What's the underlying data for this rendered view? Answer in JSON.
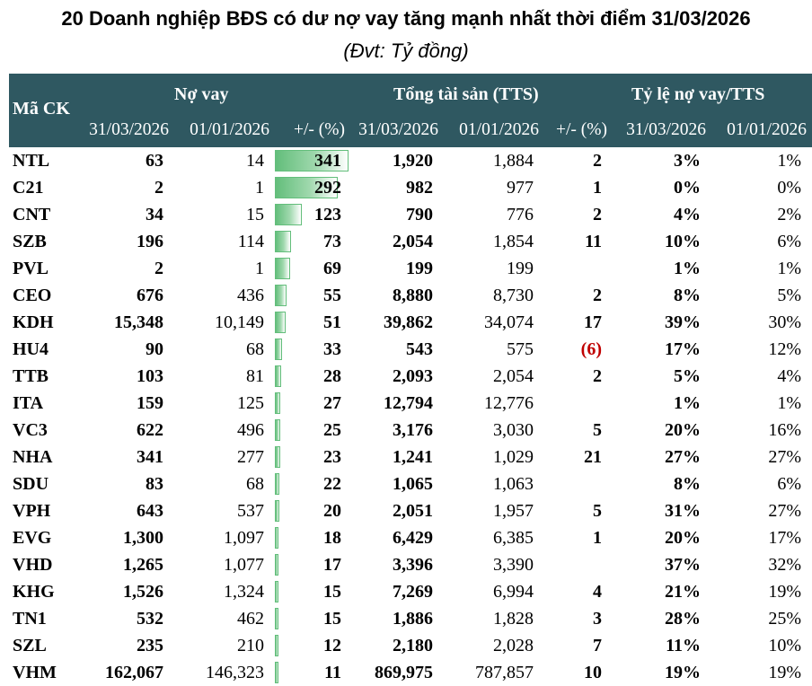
{
  "title": "20 Doanh nghiệp BĐS có dư nợ vay tăng mạnh nhất thời điểm 31/03/2026",
  "subtitle": "(Đvt: Tỷ đồng)",
  "headers": {
    "ticker": "Mã CK",
    "debt": "Nợ vay",
    "assets": "Tổng tài sản (TTS)",
    "ratio": "Tỷ lệ nợ vay/TTS",
    "date1": "31/03/2026",
    "date2": "01/01/2026",
    "change": "+/- (%)"
  },
  "bar_color": "#63be7b",
  "header_color": "#2f5861",
  "rows": [
    {
      "ticker": "NTL",
      "debt_q1": "63",
      "debt_start": "14",
      "debt_chg": "341",
      "debt_chg_val": 341,
      "assets_q1": "1,920",
      "assets_start": "1,884",
      "assets_chg": "2",
      "ratio_q1": "3%",
      "ratio_start": "1%"
    },
    {
      "ticker": "C21",
      "debt_q1": "2",
      "debt_start": "1",
      "debt_chg": "292",
      "debt_chg_val": 292,
      "assets_q1": "982",
      "assets_start": "977",
      "assets_chg": "1",
      "ratio_q1": "0%",
      "ratio_start": "0%"
    },
    {
      "ticker": "CNT",
      "debt_q1": "34",
      "debt_start": "15",
      "debt_chg": "123",
      "debt_chg_val": 123,
      "assets_q1": "790",
      "assets_start": "776",
      "assets_chg": "2",
      "ratio_q1": "4%",
      "ratio_start": "2%"
    },
    {
      "ticker": "SZB",
      "debt_q1": "196",
      "debt_start": "114",
      "debt_chg": "73",
      "debt_chg_val": 73,
      "assets_q1": "2,054",
      "assets_start": "1,854",
      "assets_chg": "11",
      "ratio_q1": "10%",
      "ratio_start": "6%"
    },
    {
      "ticker": "PVL",
      "debt_q1": "2",
      "debt_start": "1",
      "debt_chg": "69",
      "debt_chg_val": 69,
      "assets_q1": "199",
      "assets_start": "199",
      "assets_chg": "",
      "ratio_q1": "1%",
      "ratio_start": "1%"
    },
    {
      "ticker": "CEO",
      "debt_q1": "676",
      "debt_start": "436",
      "debt_chg": "55",
      "debt_chg_val": 55,
      "assets_q1": "8,880",
      "assets_start": "8,730",
      "assets_chg": "2",
      "ratio_q1": "8%",
      "ratio_start": "5%"
    },
    {
      "ticker": "KDH",
      "debt_q1": "15,348",
      "debt_start": "10,149",
      "debt_chg": "51",
      "debt_chg_val": 51,
      "assets_q1": "39,862",
      "assets_start": "34,074",
      "assets_chg": "17",
      "ratio_q1": "39%",
      "ratio_start": "30%"
    },
    {
      "ticker": "HU4",
      "debt_q1": "90",
      "debt_start": "68",
      "debt_chg": "33",
      "debt_chg_val": 33,
      "assets_q1": "543",
      "assets_start": "575",
      "assets_chg": "(6)",
      "assets_chg_neg": true,
      "ratio_q1": "17%",
      "ratio_start": "12%"
    },
    {
      "ticker": "TTB",
      "debt_q1": "103",
      "debt_start": "81",
      "debt_chg": "28",
      "debt_chg_val": 28,
      "assets_q1": "2,093",
      "assets_start": "2,054",
      "assets_chg": "2",
      "ratio_q1": "5%",
      "ratio_start": "4%"
    },
    {
      "ticker": "ITA",
      "debt_q1": "159",
      "debt_start": "125",
      "debt_chg": "27",
      "debt_chg_val": 27,
      "assets_q1": "12,794",
      "assets_start": "12,776",
      "assets_chg": "",
      "ratio_q1": "1%",
      "ratio_start": "1%"
    },
    {
      "ticker": "VC3",
      "debt_q1": "622",
      "debt_start": "496",
      "debt_chg": "25",
      "debt_chg_val": 25,
      "assets_q1": "3,176",
      "assets_start": "3,030",
      "assets_chg": "5",
      "ratio_q1": "20%",
      "ratio_start": "16%"
    },
    {
      "ticker": "NHA",
      "debt_q1": "341",
      "debt_start": "277",
      "debt_chg": "23",
      "debt_chg_val": 23,
      "assets_q1": "1,241",
      "assets_start": "1,029",
      "assets_chg": "21",
      "ratio_q1": "27%",
      "ratio_start": "27%"
    },
    {
      "ticker": "SDU",
      "debt_q1": "83",
      "debt_start": "68",
      "debt_chg": "22",
      "debt_chg_val": 22,
      "assets_q1": "1,065",
      "assets_start": "1,063",
      "assets_chg": "",
      "ratio_q1": "8%",
      "ratio_start": "6%"
    },
    {
      "ticker": "VPH",
      "debt_q1": "643",
      "debt_start": "537",
      "debt_chg": "20",
      "debt_chg_val": 20,
      "assets_q1": "2,051",
      "assets_start": "1,957",
      "assets_chg": "5",
      "ratio_q1": "31%",
      "ratio_start": "27%"
    },
    {
      "ticker": "EVG",
      "debt_q1": "1,300",
      "debt_start": "1,097",
      "debt_chg": "18",
      "debt_chg_val": 18,
      "assets_q1": "6,429",
      "assets_start": "6,385",
      "assets_chg": "1",
      "ratio_q1": "20%",
      "ratio_start": "17%"
    },
    {
      "ticker": "VHD",
      "debt_q1": "1,265",
      "debt_start": "1,077",
      "debt_chg": "17",
      "debt_chg_val": 17,
      "assets_q1": "3,396",
      "assets_start": "3,390",
      "assets_chg": "",
      "ratio_q1": "37%",
      "ratio_start": "32%"
    },
    {
      "ticker": "KHG",
      "debt_q1": "1,526",
      "debt_start": "1,324",
      "debt_chg": "15",
      "debt_chg_val": 15,
      "assets_q1": "7,269",
      "assets_start": "6,994",
      "assets_chg": "4",
      "ratio_q1": "21%",
      "ratio_start": "19%"
    },
    {
      "ticker": "TN1",
      "debt_q1": "532",
      "debt_start": "462",
      "debt_chg": "15",
      "debt_chg_val": 15,
      "assets_q1": "1,886",
      "assets_start": "1,828",
      "assets_chg": "3",
      "ratio_q1": "28%",
      "ratio_start": "25%"
    },
    {
      "ticker": "SZL",
      "debt_q1": "235",
      "debt_start": "210",
      "debt_chg": "12",
      "debt_chg_val": 12,
      "assets_q1": "2,180",
      "assets_start": "2,028",
      "assets_chg": "7",
      "ratio_q1": "11%",
      "ratio_start": "10%"
    },
    {
      "ticker": "VHM",
      "debt_q1": "162,067",
      "debt_start": "146,323",
      "debt_chg": "11",
      "debt_chg_val": 11,
      "assets_q1": "869,975",
      "assets_start": "787,857",
      "assets_chg": "10",
      "ratio_q1": "19%",
      "ratio_start": "19%"
    }
  ]
}
